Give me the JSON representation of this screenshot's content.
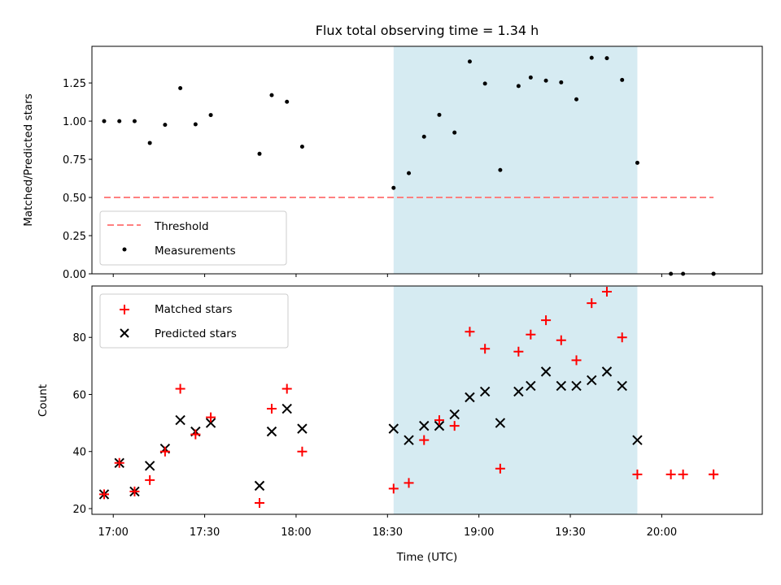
{
  "chart_data": [
    {
      "type": "scatter",
      "title": "Flux total observing time = 1.34 h",
      "ylabel": "Matched/Predicted stars",
      "xlabel": "",
      "xlim": [
        "16:53",
        "20:33"
      ],
      "ylim": [
        0.0,
        1.49
      ],
      "yticks": [
        0.0,
        0.25,
        0.5,
        0.75,
        1.0,
        1.25
      ],
      "ytick_labels": [
        "0.00",
        "0.25",
        "0.50",
        "0.75",
        "1.00",
        "1.25"
      ],
      "xticks": [
        "17:00",
        "17:30",
        "18:00",
        "18:30",
        "19:00",
        "19:30",
        "20:00"
      ],
      "shaded_region": {
        "x": [
          "18:32",
          "19:52"
        ],
        "color": "#add8e6"
      },
      "threshold": {
        "name": "Threshold",
        "value": 0.5,
        "x": [
          "16:57",
          "20:17"
        ],
        "color": "#ff8080"
      },
      "series": [
        {
          "name": "Measurements",
          "color": "#000000",
          "points": [
            [
              "16:57",
              1.0
            ],
            [
              "17:02",
              1.0
            ],
            [
              "17:07",
              1.0
            ],
            [
              "17:12",
              0.857
            ],
            [
              "17:17",
              0.976
            ],
            [
              "17:22",
              1.216
            ],
            [
              "17:27",
              0.979
            ],
            [
              "17:32",
              1.04
            ],
            [
              "17:48",
              0.786
            ],
            [
              "17:52",
              1.17
            ],
            [
              "17:57",
              1.127
            ],
            [
              "18:02",
              0.833
            ],
            [
              "18:32",
              0.563
            ],
            [
              "18:37",
              0.659
            ],
            [
              "18:42",
              0.898
            ],
            [
              "18:47",
              1.041
            ],
            [
              "18:52",
              0.925
            ],
            [
              "18:57",
              1.39
            ],
            [
              "19:02",
              1.246
            ],
            [
              "19:07",
              0.68
            ],
            [
              "19:13",
              1.23
            ],
            [
              "19:17",
              1.286
            ],
            [
              "19:22",
              1.265
            ],
            [
              "19:27",
              1.254
            ],
            [
              "19:32",
              1.143
            ],
            [
              "19:37",
              1.415
            ],
            [
              "19:42",
              1.412
            ],
            [
              "19:47",
              1.27
            ],
            [
              "19:52",
              0.727
            ],
            [
              "20:03",
              0.0
            ],
            [
              "20:07",
              0.0
            ],
            [
              "20:17",
              0.0
            ],
            [
              "20:17",
              0.0
            ]
          ]
        }
      ],
      "legend": {
        "placement": "lower-left",
        "entries": [
          "Threshold",
          "Measurements"
        ]
      }
    },
    {
      "type": "scatter",
      "title": "",
      "xlabel": "Time (UTC)",
      "ylabel": "Count",
      "xlim": [
        "16:53",
        "20:33"
      ],
      "ylim": [
        18,
        98
      ],
      "yticks": [
        20,
        40,
        60,
        80
      ],
      "xticks": [
        "17:00",
        "17:30",
        "18:00",
        "18:30",
        "19:00",
        "19:30",
        "20:00"
      ],
      "shaded_region": {
        "x": [
          "18:32",
          "19:52"
        ],
        "color": "#add8e6"
      },
      "series": [
        {
          "name": "Matched stars",
          "marker": "plus",
          "color": "#ff0000",
          "points": [
            [
              "16:57",
              25
            ],
            [
              "17:02",
              36
            ],
            [
              "17:07",
              26
            ],
            [
              "17:12",
              30
            ],
            [
              "17:17",
              40
            ],
            [
              "17:22",
              62
            ],
            [
              "17:27",
              46
            ],
            [
              "17:32",
              52
            ],
            [
              "17:48",
              22
            ],
            [
              "17:52",
              55
            ],
            [
              "17:57",
              62
            ],
            [
              "18:02",
              40
            ],
            [
              "18:32",
              27
            ],
            [
              "18:37",
              29
            ],
            [
              "18:42",
              44
            ],
            [
              "18:47",
              51
            ],
            [
              "18:52",
              49
            ],
            [
              "18:57",
              82
            ],
            [
              "19:02",
              76
            ],
            [
              "19:07",
              34
            ],
            [
              "19:13",
              75
            ],
            [
              "19:17",
              81
            ],
            [
              "19:22",
              86
            ],
            [
              "19:27",
              79
            ],
            [
              "19:32",
              72
            ],
            [
              "19:37",
              92
            ],
            [
              "19:42",
              96
            ],
            [
              "19:47",
              80
            ],
            [
              "19:52",
              32
            ],
            [
              "20:03",
              32
            ],
            [
              "20:07",
              32
            ],
            [
              "20:17",
              32
            ],
            [
              "20:17",
              32
            ]
          ]
        },
        {
          "name": "Predicted stars",
          "marker": "x",
          "color": "#000000",
          "points": [
            [
              "16:57",
              25
            ],
            [
              "17:02",
              36
            ],
            [
              "17:07",
              26
            ],
            [
              "17:12",
              35
            ],
            [
              "17:17",
              41
            ],
            [
              "17:22",
              51
            ],
            [
              "17:27",
              47
            ],
            [
              "17:32",
              50
            ],
            [
              "17:48",
              28
            ],
            [
              "17:52",
              47
            ],
            [
              "17:57",
              55
            ],
            [
              "18:02",
              48
            ],
            [
              "18:32",
              48
            ],
            [
              "18:37",
              44
            ],
            [
              "18:42",
              49
            ],
            [
              "18:47",
              49
            ],
            [
              "18:52",
              53
            ],
            [
              "18:57",
              59
            ],
            [
              "19:02",
              61
            ],
            [
              "19:07",
              50
            ],
            [
              "19:13",
              61
            ],
            [
              "19:17",
              63
            ],
            [
              "19:22",
              68
            ],
            [
              "19:27",
              63
            ],
            [
              "19:32",
              63
            ],
            [
              "19:37",
              65
            ],
            [
              "19:42",
              68
            ],
            [
              "19:47",
              63
            ],
            [
              "19:52",
              44
            ]
          ]
        }
      ],
      "legend": {
        "placement": "upper-left",
        "entries": [
          "Matched stars",
          "Predicted stars"
        ]
      }
    }
  ]
}
